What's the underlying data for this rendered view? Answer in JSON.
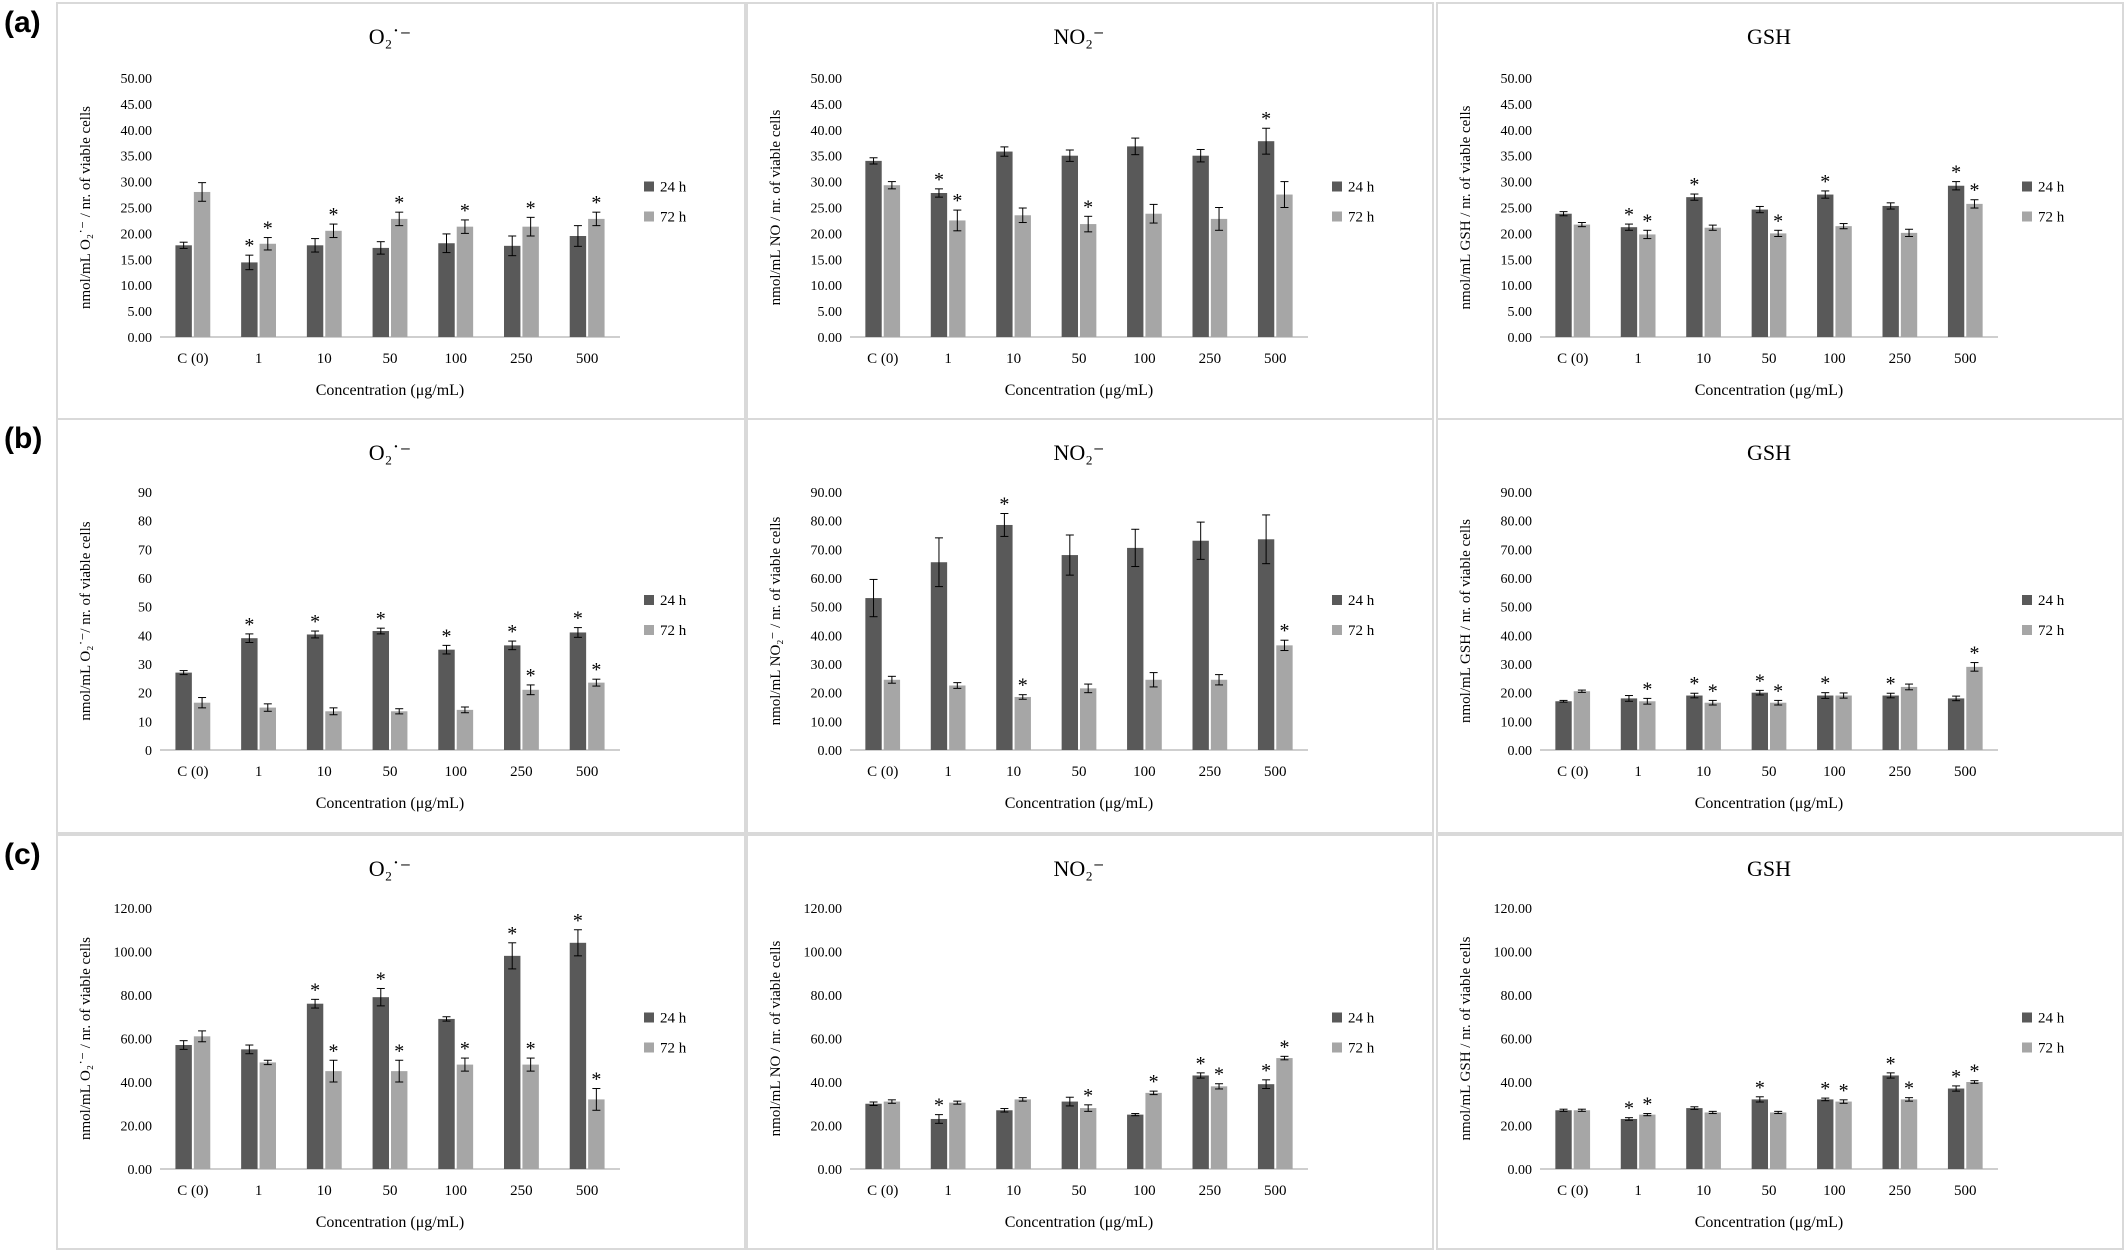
{
  "row_labels": [
    "(a)",
    "(b)",
    "(c)"
  ],
  "colors": {
    "series_24h": "#595959",
    "series_72h": "#a6a6a6",
    "panel_border": "#d9d9d9"
  },
  "chart_data": [
    {
      "type": "bar",
      "row": "(a)",
      "title": "O₂˙⁻",
      "ylabel": "nmol/mL O₂˙⁻ / nr. of viable cells",
      "xlabel": "Concentration (μg/mL)",
      "categories": [
        "C (0)",
        "1",
        "10",
        "50",
        "100",
        "250",
        "500"
      ],
      "ylim": [
        0,
        50
      ],
      "yticks": [
        "0.00",
        "5.00",
        "10.00",
        "15.00",
        "20.00",
        "25.00",
        "30.00",
        "35.00",
        "40.00",
        "45.00",
        "50.00"
      ],
      "legend": "right",
      "series": [
        {
          "name": "24 h",
          "values": [
            17.7,
            14.4,
            17.7,
            17.2,
            18.1,
            17.6,
            19.5
          ],
          "errors": [
            0.6,
            1.4,
            1.3,
            1.2,
            1.8,
            1.9,
            2.0
          ],
          "sig": [
            false,
            true,
            false,
            false,
            false,
            false,
            false
          ]
        },
        {
          "name": "72 h",
          "values": [
            28.0,
            18.0,
            20.5,
            22.8,
            21.3,
            21.3,
            22.8
          ],
          "errors": [
            1.8,
            1.2,
            1.3,
            1.3,
            1.3,
            1.8,
            1.3
          ],
          "sig": [
            false,
            true,
            true,
            true,
            true,
            true,
            true
          ]
        }
      ]
    },
    {
      "type": "bar",
      "row": "(a)",
      "title": "NO₂⁻",
      "ylabel": "nmol/mL NO / nr. of viable cells",
      "xlabel": "Concentration (μg/mL)",
      "categories": [
        "C (0)",
        "1",
        "10",
        "50",
        "100",
        "250",
        "500"
      ],
      "ylim": [
        0,
        50
      ],
      "yticks": [
        "0.00",
        "5.00",
        "10.00",
        "15.00",
        "20.00",
        "25.00",
        "30.00",
        "35.00",
        "40.00",
        "45.00",
        "50.00"
      ],
      "legend": "right",
      "series": [
        {
          "name": "24 h",
          "values": [
            34.0,
            27.8,
            35.8,
            35.0,
            36.8,
            35.0,
            37.8
          ],
          "errors": [
            0.6,
            0.8,
            0.9,
            1.1,
            1.6,
            1.2,
            2.5
          ],
          "sig": [
            false,
            true,
            false,
            false,
            false,
            false,
            true
          ]
        },
        {
          "name": "72 h",
          "values": [
            29.3,
            22.5,
            23.5,
            21.8,
            23.8,
            22.8,
            27.5
          ],
          "errors": [
            0.7,
            2.0,
            1.4,
            1.5,
            1.8,
            2.2,
            2.5
          ],
          "sig": [
            false,
            true,
            false,
            true,
            false,
            false,
            false
          ]
        }
      ]
    },
    {
      "type": "bar",
      "row": "(a)",
      "title": "GSH",
      "ylabel": "nmol/mL GSH / nr. of viable cells",
      "xlabel": "Concentration (μg/mL)",
      "categories": [
        "C (0)",
        "1",
        "10",
        "50",
        "100",
        "250",
        "500"
      ],
      "ylim": [
        0,
        50
      ],
      "yticks": [
        "0.00",
        "5.00",
        "10.00",
        "15.00",
        "20.00",
        "25.00",
        "30.00",
        "35.00",
        "40.00",
        "45.00",
        "50.00"
      ],
      "legend": "right",
      "series": [
        {
          "name": "24 h",
          "values": [
            23.8,
            21.2,
            27.0,
            24.6,
            27.5,
            25.3,
            29.2
          ],
          "errors": [
            0.4,
            0.6,
            0.6,
            0.6,
            0.7,
            0.6,
            0.8
          ],
          "sig": [
            false,
            true,
            true,
            false,
            true,
            false,
            true
          ]
        },
        {
          "name": "72 h",
          "values": [
            21.7,
            19.8,
            21.1,
            20.0,
            21.4,
            20.1,
            25.7
          ],
          "errors": [
            0.4,
            0.8,
            0.5,
            0.6,
            0.5,
            0.7,
            0.8
          ],
          "sig": [
            false,
            true,
            false,
            true,
            false,
            false,
            true
          ]
        }
      ]
    },
    {
      "type": "bar",
      "row": "(b)",
      "title": "O₂˙⁻",
      "ylabel": "nmol/mL O₂˙⁻/ nr. of viable cells",
      "xlabel": "Concentration (μg/mL)",
      "categories": [
        "C (0)",
        "1",
        "10",
        "50",
        "100",
        "250",
        "500"
      ],
      "ylim": [
        0,
        90
      ],
      "yticks": [
        "0",
        "10",
        "20",
        "30",
        "40",
        "50",
        "60",
        "70",
        "80",
        "90"
      ],
      "legend": "right",
      "series": [
        {
          "name": "24 h",
          "values": [
            27.0,
            39.0,
            40.3,
            41.5,
            35.0,
            36.5,
            41.0
          ],
          "errors": [
            0.7,
            1.5,
            1.2,
            1.0,
            1.5,
            1.5,
            1.7
          ],
          "sig": [
            false,
            true,
            true,
            true,
            true,
            true,
            true
          ]
        },
        {
          "name": "72 h",
          "values": [
            16.5,
            14.8,
            13.5,
            13.5,
            14.0,
            21.0,
            23.5
          ],
          "errors": [
            1.8,
            1.3,
            1.2,
            0.9,
            1.0,
            1.7,
            1.2
          ],
          "sig": [
            false,
            false,
            false,
            false,
            false,
            true,
            true
          ]
        }
      ]
    },
    {
      "type": "bar",
      "row": "(b)",
      "title": "NO₂⁻",
      "ylabel": "nmol/mL NO₂⁻ / nr. of viable cells",
      "xlabel": "Concentration (μg/mL)",
      "categories": [
        "C (0)",
        "1",
        "10",
        "50",
        "100",
        "250",
        "500"
      ],
      "ylim": [
        0,
        90
      ],
      "yticks": [
        "0.00",
        "10.00",
        "20.00",
        "30.00",
        "40.00",
        "50.00",
        "60.00",
        "70.00",
        "80.00",
        "90.00"
      ],
      "legend": "right",
      "series": [
        {
          "name": "24 h",
          "values": [
            53.0,
            65.5,
            78.5,
            68.0,
            70.5,
            73.0,
            73.5
          ],
          "errors": [
            6.5,
            8.5,
            4.0,
            7.0,
            6.5,
            6.5,
            8.5
          ],
          "sig": [
            false,
            false,
            true,
            false,
            false,
            false,
            false
          ]
        },
        {
          "name": "72 h",
          "values": [
            24.5,
            22.5,
            18.5,
            21.5,
            24.5,
            24.5,
            36.5
          ],
          "errors": [
            1.2,
            1.0,
            0.8,
            1.5,
            2.5,
            1.8,
            1.8
          ],
          "sig": [
            false,
            false,
            true,
            false,
            false,
            false,
            true
          ]
        }
      ]
    },
    {
      "type": "bar",
      "row": "(b)",
      "title": "GSH",
      "ylabel": "nmol/mL GSH / nr. of viable cells",
      "xlabel": "Concentration (μg/mL)",
      "categories": [
        "C (0)",
        "1",
        "10",
        "50",
        "100",
        "250",
        "500"
      ],
      "ylim": [
        0,
        90
      ],
      "yticks": [
        "0.00",
        "10.00",
        "20.00",
        "30.00",
        "40.00",
        "50.00",
        "60.00",
        "70.00",
        "80.00",
        "90.00"
      ],
      "legend": "right",
      "series": [
        {
          "name": "24 h",
          "values": [
            17.0,
            18.0,
            19.0,
            20.0,
            19.0,
            19.0,
            18.0
          ],
          "errors": [
            0.3,
            1.0,
            0.8,
            0.8,
            1.0,
            0.8,
            0.8
          ],
          "sig": [
            false,
            false,
            true,
            true,
            true,
            true,
            false
          ]
        },
        {
          "name": "72 h",
          "values": [
            20.5,
            17.0,
            16.5,
            16.5,
            19.0,
            22.0,
            29.0
          ],
          "errors": [
            0.4,
            1.0,
            0.8,
            0.8,
            0.9,
            1.0,
            1.5
          ],
          "sig": [
            false,
            true,
            true,
            true,
            false,
            false,
            true
          ]
        }
      ]
    },
    {
      "type": "bar",
      "row": "(c)",
      "title": "O₂˙⁻",
      "ylabel": "nmol/mL O₂˙⁻ / nr. of viable cells",
      "xlabel": "Concentration (μg/mL)",
      "categories": [
        "C (0)",
        "1",
        "10",
        "50",
        "100",
        "250",
        "500"
      ],
      "ylim": [
        0,
        120
      ],
      "yticks": [
        "0.00",
        "20.00",
        "40.00",
        "60.00",
        "80.00",
        "100.00",
        "120.00"
      ],
      "legend": "right",
      "series": [
        {
          "name": "24 h",
          "values": [
            57.0,
            55.0,
            76.0,
            79.0,
            69.0,
            98.0,
            104.0
          ],
          "errors": [
            2.0,
            2.0,
            2.0,
            4.0,
            1.0,
            6.0,
            6.0
          ],
          "sig": [
            false,
            false,
            true,
            true,
            false,
            true,
            true
          ]
        },
        {
          "name": "72 h",
          "values": [
            61.0,
            49.0,
            45.0,
            45.0,
            48.0,
            48.0,
            32.0
          ],
          "errors": [
            2.5,
            1.0,
            5.0,
            5.0,
            3.0,
            3.0,
            5.0
          ],
          "sig": [
            false,
            false,
            true,
            true,
            true,
            true,
            true
          ]
        }
      ]
    },
    {
      "type": "bar",
      "row": "(c)",
      "title": "NO₂⁻",
      "ylabel": "nmol/mL NO / nr. of viable cells",
      "xlabel": "Concentration (μg/mL)",
      "categories": [
        "C (0)",
        "1",
        "10",
        "50",
        "100",
        "250",
        "500"
      ],
      "ylim": [
        0,
        120
      ],
      "yticks": [
        "0.00",
        "20.00",
        "40.00",
        "60.00",
        "80.00",
        "100.00",
        "120.00"
      ],
      "legend": "right",
      "series": [
        {
          "name": "24 h",
          "values": [
            30.0,
            23.0,
            27.0,
            31.0,
            25.0,
            43.0,
            39.0
          ],
          "errors": [
            0.8,
            2.0,
            0.8,
            2.0,
            0.5,
            1.2,
            2.0
          ],
          "sig": [
            false,
            true,
            false,
            false,
            false,
            true,
            true
          ]
        },
        {
          "name": "72 h",
          "values": [
            31.0,
            30.5,
            32.0,
            28.0,
            35.0,
            38.0,
            51.0
          ],
          "errors": [
            0.8,
            0.7,
            0.8,
            1.5,
            0.8,
            1.2,
            0.8
          ],
          "sig": [
            false,
            false,
            false,
            true,
            true,
            true,
            true
          ]
        }
      ]
    },
    {
      "type": "bar",
      "row": "(c)",
      "title": "GSH",
      "ylabel": "nmol/mL GSH / nr. of viable cells",
      "xlabel": "Concentration (μg/mL)",
      "categories": [
        "C (0)",
        "1",
        "10",
        "50",
        "100",
        "250",
        "500"
      ],
      "ylim": [
        0,
        120
      ],
      "yticks": [
        "0.00",
        "20.00",
        "40.00",
        "60.00",
        "80.00",
        "100.00",
        "120.00"
      ],
      "legend": "right",
      "series": [
        {
          "name": "24 h",
          "values": [
            27.0,
            23.0,
            28.0,
            32.0,
            32.0,
            43.0,
            37.0
          ],
          "errors": [
            0.5,
            0.6,
            0.6,
            1.2,
            0.6,
            1.2,
            1.2
          ],
          "sig": [
            false,
            true,
            false,
            true,
            true,
            true,
            true
          ]
        },
        {
          "name": "72 h",
          "values": [
            27.0,
            25.0,
            26.0,
            26.0,
            31.0,
            32.0,
            40.0
          ],
          "errors": [
            0.5,
            0.5,
            0.5,
            0.5,
            0.8,
            0.8,
            0.6
          ],
          "sig": [
            false,
            true,
            false,
            false,
            true,
            true,
            true
          ]
        }
      ]
    }
  ]
}
